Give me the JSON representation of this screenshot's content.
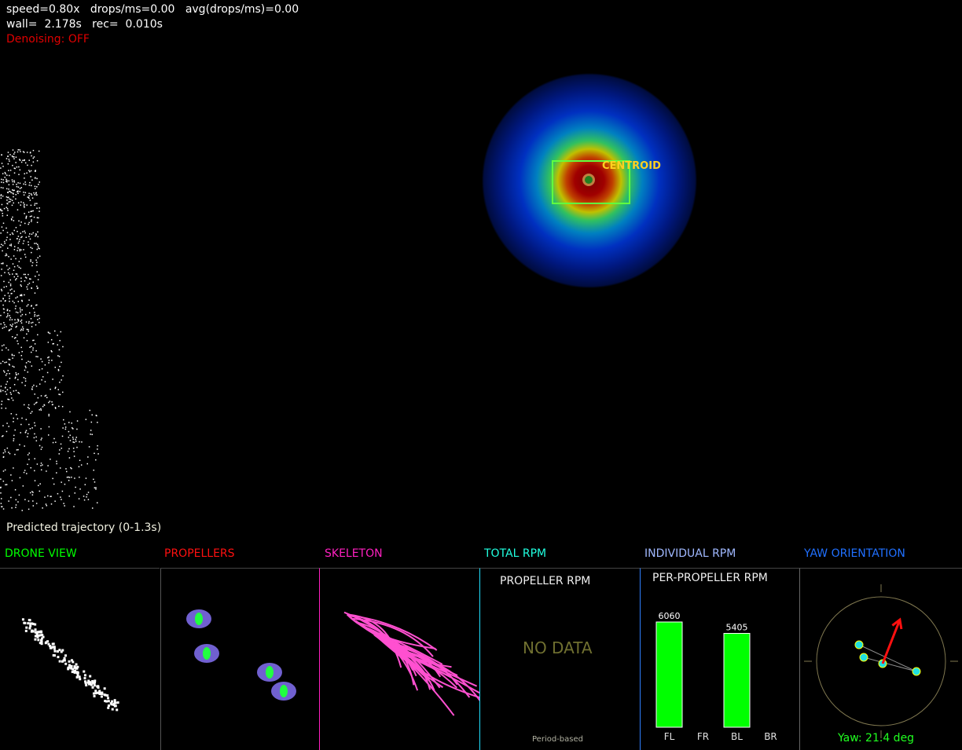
{
  "hud": {
    "line1": "speed=0.80x   drops/ms=0.00   avg(drops/ms)=0.00",
    "line2": "wall=  2.178s   rec=  0.010s",
    "denoising": "Denoising: OFF",
    "trajectory": "Predicted trajectory (0-1.3s)",
    "centroid": "CENTROID"
  },
  "panels": [
    {
      "label": "DRONE VIEW",
      "color": "#00ff00"
    },
    {
      "label": "PROPELLERS",
      "color": "#ff1010"
    },
    {
      "label": "SKELETON",
      "color": "#ff20c0"
    },
    {
      "label": "TOTAL RPM",
      "color": "#20ffe0"
    },
    {
      "label": "INDIVIDUAL RPM",
      "color": "#a0b8ff"
    },
    {
      "label": "YAW ORIENTATION",
      "color": "#2070ff"
    }
  ],
  "total_rpm": {
    "title": "PROPELLER RPM",
    "status": "NO DATA",
    "footer": "Period-based"
  },
  "chart_data": {
    "type": "bar",
    "title": "PER-PROPELLER RPM",
    "categories": [
      "FL",
      "FR",
      "BL",
      "BR"
    ],
    "values": [
      6060,
      null,
      5405,
      null
    ],
    "bar_color": "#00ff00"
  },
  "yaw": {
    "label": "Yaw: 21.4 deg",
    "yaw_deg": 21.4
  }
}
